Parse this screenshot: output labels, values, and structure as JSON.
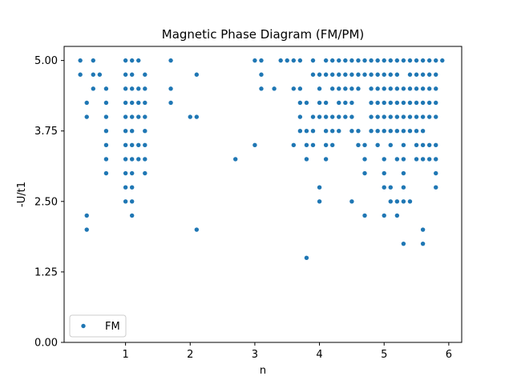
{
  "chart_data": {
    "type": "scatter",
    "title": "Magnetic Phase Diagram (FM/PM)",
    "xlabel": "n",
    "ylabel": "-U/t1",
    "xlim": [
      0.05,
      6.2
    ],
    "ylim": [
      0,
      5.25
    ],
    "xticks": [
      1,
      2,
      3,
      4,
      5,
      6
    ],
    "xtick_labels": [
      "1",
      "2",
      "3",
      "4",
      "5",
      "6"
    ],
    "yticks": [
      0,
      1.25,
      2.5,
      3.75,
      5.0
    ],
    "ytick_labels": [
      "0.00",
      "1.25",
      "2.50",
      "3.75",
      "5.00"
    ],
    "grid": false,
    "legend_position": "lower-left",
    "colors": {
      "marker": "#1f77b4",
      "axes": "#000000"
    },
    "series": [
      {
        "name": "FM",
        "points": [
          [
            0.3,
            5.0
          ],
          [
            0.3,
            4.75
          ],
          [
            0.4,
            4.25
          ],
          [
            0.4,
            4.0
          ],
          [
            0.4,
            2.25
          ],
          [
            0.4,
            2.0
          ],
          [
            0.5,
            5.0
          ],
          [
            0.5,
            4.75
          ],
          [
            0.5,
            4.5
          ],
          [
            0.6,
            4.75
          ],
          [
            0.7,
            4.5
          ],
          [
            0.7,
            4.25
          ],
          [
            0.7,
            4.0
          ],
          [
            0.7,
            3.75
          ],
          [
            0.7,
            3.5
          ],
          [
            0.7,
            3.25
          ],
          [
            0.7,
            3.0
          ],
          [
            1.0,
            5.0
          ],
          [
            1.0,
            4.75
          ],
          [
            1.0,
            4.5
          ],
          [
            1.0,
            4.25
          ],
          [
            1.0,
            4.0
          ],
          [
            1.0,
            3.75
          ],
          [
            1.0,
            3.5
          ],
          [
            1.0,
            3.25
          ],
          [
            1.0,
            3.0
          ],
          [
            1.0,
            2.75
          ],
          [
            1.0,
            2.5
          ],
          [
            1.1,
            5.0
          ],
          [
            1.1,
            4.75
          ],
          [
            1.1,
            4.5
          ],
          [
            1.1,
            4.25
          ],
          [
            1.1,
            4.0
          ],
          [
            1.1,
            3.75
          ],
          [
            1.1,
            3.5
          ],
          [
            1.1,
            3.25
          ],
          [
            1.1,
            3.0
          ],
          [
            1.1,
            2.75
          ],
          [
            1.1,
            2.5
          ],
          [
            1.1,
            2.25
          ],
          [
            1.2,
            5.0
          ],
          [
            1.2,
            4.5
          ],
          [
            1.2,
            4.25
          ],
          [
            1.2,
            4.0
          ],
          [
            1.2,
            3.5
          ],
          [
            1.2,
            3.25
          ],
          [
            1.3,
            4.75
          ],
          [
            1.3,
            4.5
          ],
          [
            1.3,
            4.25
          ],
          [
            1.3,
            4.0
          ],
          [
            1.3,
            3.75
          ],
          [
            1.3,
            3.5
          ],
          [
            1.3,
            3.25
          ],
          [
            1.3,
            3.0
          ],
          [
            1.7,
            5.0
          ],
          [
            1.7,
            4.5
          ],
          [
            1.7,
            4.25
          ],
          [
            2.0,
            4.0
          ],
          [
            2.1,
            4.75
          ],
          [
            2.1,
            4.0
          ],
          [
            2.1,
            2.0
          ],
          [
            2.7,
            3.25
          ],
          [
            3.0,
            5.0
          ],
          [
            3.0,
            3.5
          ],
          [
            3.1,
            5.0
          ],
          [
            3.1,
            4.75
          ],
          [
            3.1,
            4.5
          ],
          [
            3.3,
            4.5
          ],
          [
            3.4,
            5.0
          ],
          [
            3.5,
            5.0
          ],
          [
            3.6,
            5.0
          ],
          [
            3.6,
            4.5
          ],
          [
            3.6,
            3.5
          ],
          [
            3.7,
            5.0
          ],
          [
            3.7,
            4.5
          ],
          [
            3.7,
            4.25
          ],
          [
            3.7,
            4.0
          ],
          [
            3.7,
            3.75
          ],
          [
            3.8,
            4.25
          ],
          [
            3.8,
            3.75
          ],
          [
            3.8,
            3.5
          ],
          [
            3.8,
            3.25
          ],
          [
            3.8,
            1.5
          ],
          [
            3.9,
            5.0
          ],
          [
            3.9,
            4.75
          ],
          [
            3.9,
            4.0
          ],
          [
            3.9,
            3.75
          ],
          [
            3.9,
            3.5
          ],
          [
            4.0,
            4.75
          ],
          [
            4.0,
            4.5
          ],
          [
            4.0,
            4.25
          ],
          [
            4.0,
            4.0
          ],
          [
            4.0,
            2.75
          ],
          [
            4.0,
            2.5
          ],
          [
            4.1,
            5.0
          ],
          [
            4.1,
            4.75
          ],
          [
            4.1,
            4.25
          ],
          [
            4.1,
            4.0
          ],
          [
            4.1,
            3.75
          ],
          [
            4.1,
            3.5
          ],
          [
            4.1,
            3.25
          ],
          [
            4.2,
            5.0
          ],
          [
            4.2,
            4.75
          ],
          [
            4.2,
            4.5
          ],
          [
            4.2,
            4.0
          ],
          [
            4.2,
            3.75
          ],
          [
            4.2,
            3.5
          ],
          [
            4.3,
            5.0
          ],
          [
            4.3,
            4.75
          ],
          [
            4.3,
            4.5
          ],
          [
            4.3,
            4.25
          ],
          [
            4.3,
            4.0
          ],
          [
            4.3,
            3.75
          ],
          [
            4.4,
            5.0
          ],
          [
            4.4,
            4.75
          ],
          [
            4.4,
            4.5
          ],
          [
            4.4,
            4.25
          ],
          [
            4.4,
            4.0
          ],
          [
            4.5,
            5.0
          ],
          [
            4.5,
            4.75
          ],
          [
            4.5,
            4.5
          ],
          [
            4.5,
            4.25
          ],
          [
            4.5,
            4.0
          ],
          [
            4.5,
            3.75
          ],
          [
            4.5,
            2.5
          ],
          [
            4.6,
            5.0
          ],
          [
            4.6,
            4.75
          ],
          [
            4.6,
            4.5
          ],
          [
            4.6,
            3.75
          ],
          [
            4.6,
            3.5
          ],
          [
            4.7,
            5.0
          ],
          [
            4.7,
            4.75
          ],
          [
            4.7,
            3.5
          ],
          [
            4.7,
            3.25
          ],
          [
            4.7,
            3.0
          ],
          [
            4.7,
            2.25
          ],
          [
            4.8,
            5.0
          ],
          [
            4.8,
            4.75
          ],
          [
            4.8,
            4.5
          ],
          [
            4.8,
            4.25
          ],
          [
            4.8,
            4.0
          ],
          [
            4.8,
            3.75
          ],
          [
            4.9,
            5.0
          ],
          [
            4.9,
            4.75
          ],
          [
            4.9,
            4.5
          ],
          [
            4.9,
            4.25
          ],
          [
            4.9,
            4.0
          ],
          [
            4.9,
            3.75
          ],
          [
            4.9,
            3.5
          ],
          [
            5.0,
            5.0
          ],
          [
            5.0,
            4.75
          ],
          [
            5.0,
            4.5
          ],
          [
            5.0,
            4.25
          ],
          [
            5.0,
            4.0
          ],
          [
            5.0,
            3.75
          ],
          [
            5.0,
            3.25
          ],
          [
            5.0,
            3.0
          ],
          [
            5.0,
            2.75
          ],
          [
            5.0,
            2.25
          ],
          [
            5.1,
            5.0
          ],
          [
            5.1,
            4.75
          ],
          [
            5.1,
            4.5
          ],
          [
            5.1,
            4.25
          ],
          [
            5.1,
            4.0
          ],
          [
            5.1,
            3.75
          ],
          [
            5.1,
            3.5
          ],
          [
            5.1,
            2.75
          ],
          [
            5.1,
            2.5
          ],
          [
            5.2,
            5.0
          ],
          [
            5.2,
            4.75
          ],
          [
            5.2,
            4.5
          ],
          [
            5.2,
            4.25
          ],
          [
            5.2,
            4.0
          ],
          [
            5.2,
            3.75
          ],
          [
            5.2,
            3.25
          ],
          [
            5.2,
            2.5
          ],
          [
            5.2,
            2.25
          ],
          [
            5.3,
            5.0
          ],
          [
            5.3,
            4.5
          ],
          [
            5.3,
            4.25
          ],
          [
            5.3,
            4.0
          ],
          [
            5.3,
            3.75
          ],
          [
            5.3,
            3.5
          ],
          [
            5.3,
            3.25
          ],
          [
            5.3,
            3.0
          ],
          [
            5.3,
            2.75
          ],
          [
            5.3,
            2.5
          ],
          [
            5.3,
            1.75
          ],
          [
            5.4,
            5.0
          ],
          [
            5.4,
            4.75
          ],
          [
            5.4,
            4.5
          ],
          [
            5.4,
            4.25
          ],
          [
            5.4,
            4.0
          ],
          [
            5.4,
            3.75
          ],
          [
            5.4,
            2.5
          ],
          [
            5.5,
            5.0
          ],
          [
            5.5,
            4.75
          ],
          [
            5.5,
            4.5
          ],
          [
            5.5,
            4.25
          ],
          [
            5.5,
            4.0
          ],
          [
            5.5,
            3.75
          ],
          [
            5.5,
            3.5
          ],
          [
            5.5,
            3.25
          ],
          [
            5.6,
            5.0
          ],
          [
            5.6,
            4.75
          ],
          [
            5.6,
            4.5
          ],
          [
            5.6,
            4.25
          ],
          [
            5.6,
            4.0
          ],
          [
            5.6,
            3.75
          ],
          [
            5.6,
            3.5
          ],
          [
            5.6,
            3.25
          ],
          [
            5.6,
            2.0
          ],
          [
            5.6,
            1.75
          ],
          [
            5.7,
            5.0
          ],
          [
            5.7,
            4.75
          ],
          [
            5.7,
            4.5
          ],
          [
            5.7,
            4.25
          ],
          [
            5.7,
            4.0
          ],
          [
            5.7,
            3.5
          ],
          [
            5.7,
            3.25
          ],
          [
            5.8,
            5.0
          ],
          [
            5.8,
            4.75
          ],
          [
            5.8,
            4.5
          ],
          [
            5.8,
            4.25
          ],
          [
            5.8,
            4.0
          ],
          [
            5.8,
            3.5
          ],
          [
            5.8,
            3.25
          ],
          [
            5.8,
            3.0
          ],
          [
            5.8,
            2.75
          ],
          [
            5.9,
            5.0
          ]
        ]
      }
    ]
  }
}
